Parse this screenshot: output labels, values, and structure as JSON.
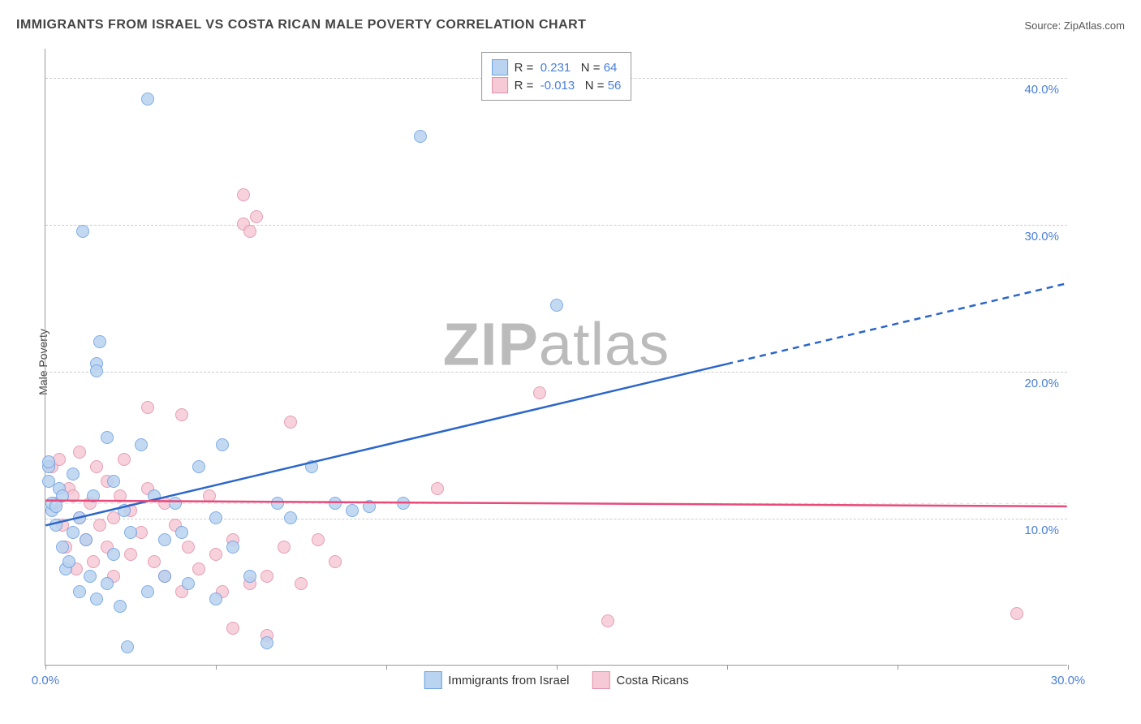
{
  "title": "IMMIGRANTS FROM ISRAEL VS COSTA RICAN MALE POVERTY CORRELATION CHART",
  "source_label": "Source: ",
  "source_name": "ZipAtlas.com",
  "ylabel": "Male Poverty",
  "watermark_bold": "ZIP",
  "watermark_rest": "atlas",
  "chart": {
    "type": "scatter",
    "background_color": "#ffffff",
    "grid_color": "#cccccc",
    "axis_color": "#999999",
    "x_range": [
      0,
      30
    ],
    "y_range": [
      0,
      42
    ],
    "x_ticks": [
      0,
      5,
      10,
      15,
      20,
      25,
      30
    ],
    "x_tick_labels": {
      "0": "0.0%",
      "30": "30.0%"
    },
    "y_gridlines": [
      10,
      20,
      30,
      40
    ],
    "y_tick_labels": {
      "10": "10.0%",
      "20": "20.0%",
      "30": "30.0%",
      "40": "40.0%"
    },
    "y_label_color": "#4a7fd8",
    "x_label_color": "#4a7fd8",
    "tick_label_fontsize": 15
  },
  "series": [
    {
      "name": "Immigrants from Israel",
      "fill": "#b9d3f0",
      "stroke": "#6a9fe0",
      "line_color": "#2b66c9",
      "r": 0.231,
      "n": 64,
      "trend": {
        "x1": 0,
        "y1": 9.5,
        "x2": 20,
        "y2": 20.5,
        "x3": 30,
        "y3": 26
      },
      "points": [
        [
          0.1,
          12.5
        ],
        [
          0.1,
          13.5
        ],
        [
          0.1,
          13.8
        ],
        [
          0.2,
          10.5
        ],
        [
          0.2,
          11.0
        ],
        [
          0.3,
          9.5
        ],
        [
          0.3,
          10.8
        ],
        [
          0.4,
          12.0
        ],
        [
          0.5,
          8.0
        ],
        [
          0.5,
          11.5
        ],
        [
          0.6,
          6.5
        ],
        [
          0.7,
          7.0
        ],
        [
          0.8,
          9.0
        ],
        [
          0.8,
          13.0
        ],
        [
          1.0,
          5.0
        ],
        [
          1.0,
          10.0
        ],
        [
          1.1,
          29.5
        ],
        [
          1.2,
          8.5
        ],
        [
          1.3,
          6.0
        ],
        [
          1.4,
          11.5
        ],
        [
          1.5,
          4.5
        ],
        [
          1.5,
          20.5
        ],
        [
          1.5,
          20.0
        ],
        [
          1.6,
          22.0
        ],
        [
          1.8,
          5.5
        ],
        [
          1.8,
          15.5
        ],
        [
          2.0,
          7.5
        ],
        [
          2.0,
          12.5
        ],
        [
          2.2,
          4.0
        ],
        [
          2.3,
          10.5
        ],
        [
          2.4,
          1.2
        ],
        [
          2.5,
          9.0
        ],
        [
          2.8,
          15.0
        ],
        [
          3.0,
          5.0
        ],
        [
          3.0,
          38.5
        ],
        [
          3.2,
          11.5
        ],
        [
          3.5,
          6.0
        ],
        [
          3.5,
          8.5
        ],
        [
          3.8,
          11.0
        ],
        [
          4.0,
          9.0
        ],
        [
          4.2,
          5.5
        ],
        [
          4.5,
          13.5
        ],
        [
          5.0,
          10.0
        ],
        [
          5.0,
          4.5
        ],
        [
          5.2,
          15.0
        ],
        [
          5.5,
          8.0
        ],
        [
          6.0,
          6.0
        ],
        [
          6.5,
          1.5
        ],
        [
          6.8,
          11.0
        ],
        [
          7.2,
          10.0
        ],
        [
          7.8,
          13.5
        ],
        [
          8.5,
          11.0
        ],
        [
          9.0,
          10.5
        ],
        [
          9.5,
          10.8
        ],
        [
          10.5,
          11.0
        ],
        [
          11.0,
          36.0
        ],
        [
          15.0,
          24.5
        ]
      ]
    },
    {
      "name": "Costa Ricans",
      "fill": "#f6c9d6",
      "stroke": "#e08fa8",
      "line_color": "#e84a7a",
      "r": -0.013,
      "n": 56,
      "trend": {
        "x1": 0,
        "y1": 11.2,
        "x2": 30,
        "y2": 10.8
      },
      "points": [
        [
          0.2,
          13.5
        ],
        [
          0.3,
          11.0
        ],
        [
          0.4,
          14.0
        ],
        [
          0.5,
          9.5
        ],
        [
          0.6,
          8.0
        ],
        [
          0.7,
          12.0
        ],
        [
          0.8,
          11.5
        ],
        [
          0.9,
          6.5
        ],
        [
          1.0,
          10.0
        ],
        [
          1.0,
          14.5
        ],
        [
          1.2,
          8.5
        ],
        [
          1.3,
          11.0
        ],
        [
          1.4,
          7.0
        ],
        [
          1.5,
          13.5
        ],
        [
          1.6,
          9.5
        ],
        [
          1.8,
          8.0
        ],
        [
          1.8,
          12.5
        ],
        [
          2.0,
          10.0
        ],
        [
          2.0,
          6.0
        ],
        [
          2.2,
          11.5
        ],
        [
          2.3,
          14.0
        ],
        [
          2.5,
          7.5
        ],
        [
          2.5,
          10.5
        ],
        [
          2.8,
          9.0
        ],
        [
          3.0,
          12.0
        ],
        [
          3.0,
          17.5
        ],
        [
          3.2,
          7.0
        ],
        [
          3.5,
          11.0
        ],
        [
          3.5,
          6.0
        ],
        [
          3.8,
          9.5
        ],
        [
          4.0,
          17.0
        ],
        [
          4.0,
          5.0
        ],
        [
          4.2,
          8.0
        ],
        [
          4.5,
          6.5
        ],
        [
          4.8,
          11.5
        ],
        [
          5.0,
          7.5
        ],
        [
          5.2,
          5.0
        ],
        [
          5.5,
          2.5
        ],
        [
          5.5,
          8.5
        ],
        [
          5.8,
          32.0
        ],
        [
          5.8,
          30.0
        ],
        [
          6.0,
          29.5
        ],
        [
          6.0,
          5.5
        ],
        [
          6.2,
          30.5
        ],
        [
          6.5,
          6.0
        ],
        [
          6.5,
          2.0
        ],
        [
          7.0,
          8.0
        ],
        [
          7.2,
          16.5
        ],
        [
          7.5,
          5.5
        ],
        [
          8.0,
          8.5
        ],
        [
          8.5,
          7.0
        ],
        [
          11.5,
          12.0
        ],
        [
          14.5,
          18.5
        ],
        [
          16.5,
          3.0
        ],
        [
          28.5,
          3.5
        ]
      ]
    }
  ],
  "legend_top": {
    "r_label": "R =",
    "n_label": "N ="
  },
  "legend_bottom": [
    {
      "label": "Immigrants from Israel",
      "fill": "#b9d3f0",
      "stroke": "#6a9fe0"
    },
    {
      "label": "Costa Ricans",
      "fill": "#f6c9d6",
      "stroke": "#e08fa8"
    }
  ]
}
